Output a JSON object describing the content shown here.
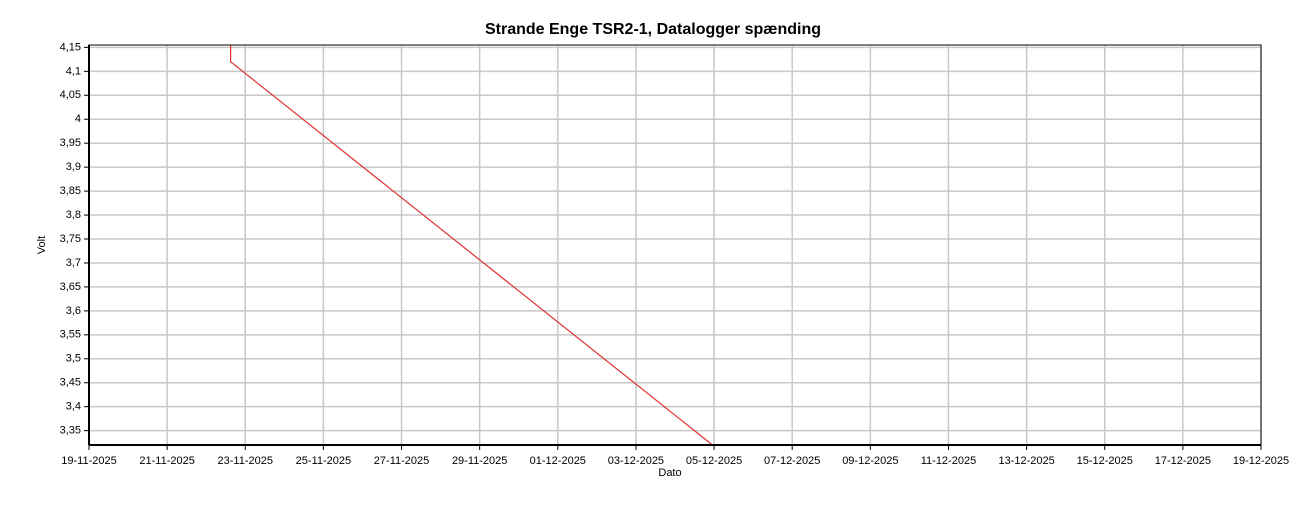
{
  "chart_data": {
    "type": "line",
    "title": "Strande Enge TSR2-1, Datalogger spænding",
    "xlabel": "Dato",
    "ylabel": "Volt",
    "x": [
      "22-11-2025 15:00",
      "22-11-2025 15:00",
      "04-12-2025 23:00"
    ],
    "series": [
      {
        "name": "Datalogger spænding",
        "color": "#e03030",
        "values": [
          4.155,
          4.12,
          3.32
        ]
      }
    ],
    "xlim": [
      "19-11-2025",
      "19-12-2025"
    ],
    "xticks": [
      "19-11-2025",
      "21-11-2025",
      "23-11-2025",
      "25-11-2025",
      "27-11-2025",
      "29-11-2025",
      "01-12-2025",
      "03-12-2025",
      "05-12-2025",
      "07-12-2025",
      "09-12-2025",
      "11-12-2025",
      "13-12-2025",
      "15-12-2025",
      "17-12-2025",
      "19-12-2025"
    ],
    "ylim": [
      3.32,
      4.155
    ],
    "yticks": [
      {
        "value": 3.35,
        "label": "3,35"
      },
      {
        "value": 3.4,
        "label": "3,4"
      },
      {
        "value": 3.45,
        "label": "3,45"
      },
      {
        "value": 3.5,
        "label": "3,5"
      },
      {
        "value": 3.55,
        "label": "3,55"
      },
      {
        "value": 3.6,
        "label": "3,6"
      },
      {
        "value": 3.65,
        "label": "3,65"
      },
      {
        "value": 3.7,
        "label": "3,7"
      },
      {
        "value": 3.75,
        "label": "3,75"
      },
      {
        "value": 3.8,
        "label": "3,8"
      },
      {
        "value": 3.85,
        "label": "3,85"
      },
      {
        "value": 3.9,
        "label": "3,9"
      },
      {
        "value": 3.95,
        "label": "3,95"
      },
      {
        "value": 4,
        "label": "4"
      },
      {
        "value": 4.05,
        "label": "4,05"
      },
      {
        "value": 4.1,
        "label": "4,1"
      },
      {
        "value": 4.15,
        "label": "4,15"
      }
    ],
    "grid": true
  }
}
